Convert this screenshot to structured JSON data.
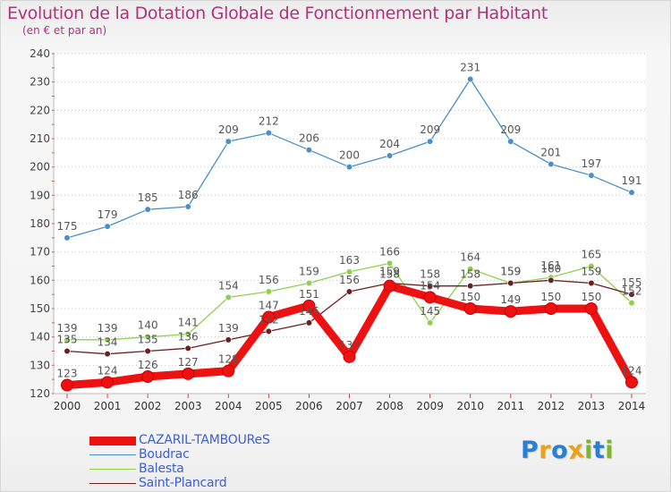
{
  "title": "Evolution de la Dotation Globale de Fonctionnement par Habitant",
  "subtitle": "(en € et par an)",
  "logo": {
    "text": "Proxiti",
    "letters": [
      {
        "ch": "P",
        "color": "#2a7fd4"
      },
      {
        "ch": "r",
        "color": "#e8a317"
      },
      {
        "ch": "o",
        "color": "#2a7fd4"
      },
      {
        "ch": "x",
        "color": "#e8a317"
      },
      {
        "ch": "i",
        "color": "#7ab829"
      },
      {
        "ch": "t",
        "color": "#2a7fd4"
      },
      {
        "ch": "i",
        "color": "#7ab829"
      }
    ]
  },
  "chart_data": {
    "type": "line",
    "title": "Evolution de la Dotation Globale de Fonctionnement par Habitant",
    "subtitle": "(en € et par an)",
    "x": [
      "2000",
      "2001",
      "2002",
      "2003",
      "2004",
      "2005",
      "2006",
      "2007",
      "2008",
      "2009",
      "2010",
      "2011",
      "2012",
      "2013",
      "2014"
    ],
    "ylim": [
      120,
      240
    ],
    "yticks": [
      120,
      130,
      140,
      150,
      160,
      170,
      180,
      190,
      200,
      210,
      220,
      230,
      240
    ],
    "grid": "horizontal dotted",
    "legend_position": "bottom-left",
    "series": [
      {
        "name": "Boudrac",
        "color": "#4a90c8",
        "values": [
          175,
          179,
          185,
          186,
          209,
          212,
          206,
          200,
          204,
          209,
          231,
          209,
          201,
          197,
          191
        ]
      },
      {
        "name": "Balesta",
        "color": "#8fd14f",
        "values": [
          139,
          139,
          140,
          141,
          154,
          156,
          159,
          163,
          166,
          145,
          164,
          159,
          161,
          165,
          152
        ]
      },
      {
        "name": "Saint-Plancard",
        "color": "#6b1f1f",
        "values": [
          135,
          134,
          135,
          136,
          139,
          142,
          145,
          156,
          159,
          158,
          158,
          159,
          160,
          159,
          155
        ]
      },
      {
        "name": "CAZARIL-TAMBOUReS",
        "color": "#ee1111",
        "values": [
          123,
          124,
          126,
          127,
          128,
          147,
          151,
          133,
          158,
          154,
          150,
          149,
          150,
          150,
          124
        ]
      }
    ]
  }
}
